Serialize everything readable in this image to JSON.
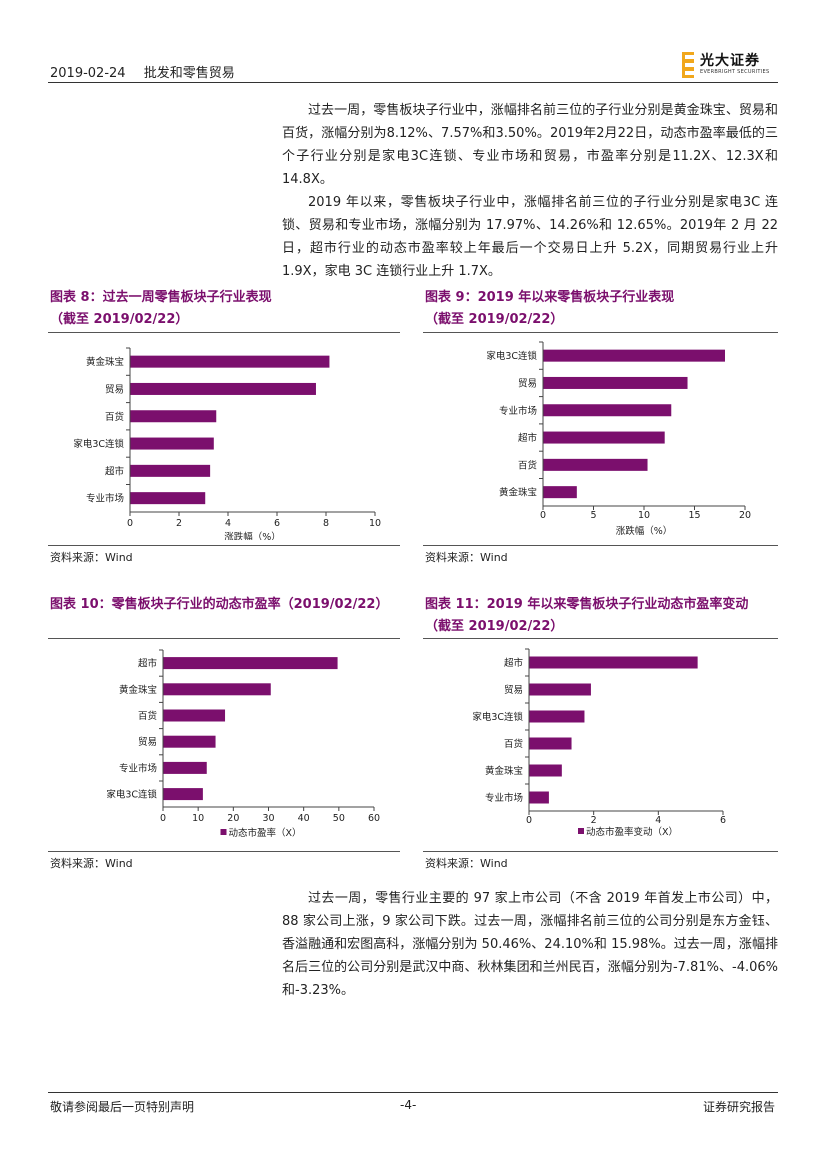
{
  "header": {
    "date": "2019-02-24",
    "category": "批发和零售贸易",
    "logo_cn": "光大证券",
    "logo_en": "EVERBRIGHT SECURITIES"
  },
  "intro": {
    "p1": "过去一周，零售板块子行业中，涨幅排名前三位的子行业分别是黄金珠宝、贸易和百货，涨幅分别为8.12%、7.57%和3.50%。2019年2月22日，动态市盈率最低的三个子行业分别是家电3C连锁、专业市场和贸易，市盈率分别是11.2X、12.3X和14.8X。",
    "p2": "2019 年以来，零售板块子行业中，涨幅排名前三位的子行业分别是家电3C 连锁、贸易和专业市场，涨幅分别为 17.97%、14.26%和 12.65%。2019年 2 月 22 日，超市行业的动态市盈率较上年最后一个交易日上升 5.2X，同期贸易行业上升 1.9X，家电 3C 连锁行业上升 1.7X。"
  },
  "figures": [
    {
      "title": "图表 8：过去一周零售板块子行业表现",
      "subtitle": "（截至 2019/02/22）",
      "source": "资料来源：Wind"
    },
    {
      "title": "图表 9：2019 年以来零售板块子行业表现",
      "subtitle": "（截至 2019/02/22）",
      "source": "资料来源：Wind"
    },
    {
      "title": "图表 10：零售板块子行业的动态市盈率（2019/02/22）",
      "subtitle": "",
      "source": "资料来源：Wind"
    },
    {
      "title": "图表 11：2019 年以来零售板块子行业动态市盈率变动",
      "subtitle": "（截至 2019/02/22）",
      "source": "资料来源：Wind"
    }
  ],
  "chart_data": [
    {
      "type": "bar",
      "orientation": "horizontal",
      "categories": [
        "黄金珠宝",
        "贸易",
        "百货",
        "家电3C连锁",
        "超市",
        "专业市场"
      ],
      "values": [
        8.12,
        7.57,
        3.5,
        3.4,
        3.25,
        3.05
      ],
      "xlabel": "涨跌幅（%）",
      "xlim": [
        0,
        10
      ],
      "ticks": [
        0,
        2,
        4,
        6,
        8,
        10
      ],
      "legend": "",
      "color": "#7b0f6d"
    },
    {
      "type": "bar",
      "orientation": "horizontal",
      "categories": [
        "家电3C连锁",
        "贸易",
        "专业市场",
        "超市",
        "百货",
        "黄金珠宝"
      ],
      "values": [
        17.97,
        14.26,
        12.65,
        12.0,
        10.3,
        3.3
      ],
      "xlabel": "涨跌幅（%）",
      "xlim": [
        0,
        20
      ],
      "ticks": [
        0,
        5,
        10,
        15,
        20
      ],
      "legend": "",
      "color": "#7b0f6d"
    },
    {
      "type": "bar",
      "orientation": "horizontal",
      "categories": [
        "超市",
        "黄金珠宝",
        "百货",
        "贸易",
        "专业市场",
        "家电3C连锁"
      ],
      "values": [
        49.5,
        30.5,
        17.5,
        14.8,
        12.3,
        11.2
      ],
      "xlabel": "",
      "xlim": [
        0,
        60
      ],
      "ticks": [
        0,
        10,
        20,
        30,
        40,
        50,
        60
      ],
      "legend": "动态市盈率（X）",
      "color": "#7b0f6d"
    },
    {
      "type": "bar",
      "orientation": "horizontal",
      "categories": [
        "超市",
        "贸易",
        "家电3C连锁",
        "百货",
        "黄金珠宝",
        "专业市场"
      ],
      "values": [
        5.2,
        1.9,
        1.7,
        1.3,
        1.0,
        0.6
      ],
      "xlabel": "",
      "xlim": [
        0,
        6
      ],
      "ticks": [
        0,
        2,
        4,
        6
      ],
      "legend": "动态市盈率变动（X）",
      "color": "#7b0f6d"
    }
  ],
  "outro": {
    "p1": "过去一周，零售行业主要的 97 家上市公司（不含 2019 年首发上市公司）中，88 家公司上涨，9 家公司下跌。过去一周，涨幅排名前三位的公司分别是东方金钰、香溢融通和宏图高科，涨幅分别为 50.46%、24.10%和 15.98%。过去一周，涨幅排名后三位的公司分别是武汉中商、秋林集团和兰州民百，涨幅分别为-7.81%、-4.06%和-3.23%。"
  },
  "footer": {
    "left": "敬请参阅最后一页特别声明",
    "center": "-4-",
    "right": "证券研究报告"
  }
}
